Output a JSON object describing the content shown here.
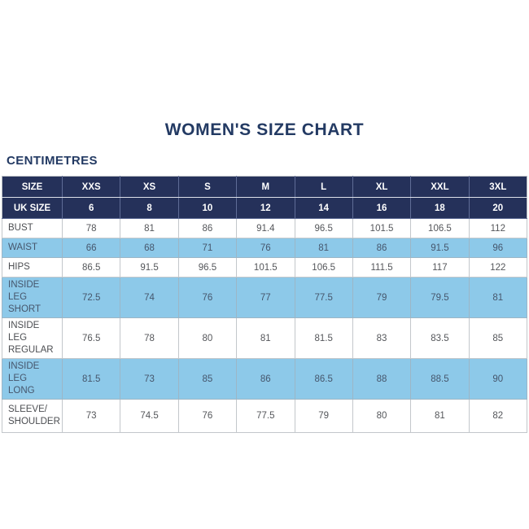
{
  "title": "WOMEN'S SIZE CHART",
  "unit_label": "CENTIMETRES",
  "colors": {
    "header_navy": "#25315A",
    "row_light_blue": "#8DC9E9",
    "title_navy": "#233A63",
    "body_text_gray": "#54565A",
    "grid_border": "#C3C7CB",
    "header_text": "#FFFFFF"
  },
  "chart_data": {
    "type": "table",
    "title": "WOMEN'S SIZE CHART",
    "unit_label": "CENTIMETRES",
    "columns": [
      "SIZE",
      "XXS",
      "XS",
      "S",
      "M",
      "L",
      "XL",
      "XXL",
      "3XL"
    ],
    "uk_size_row": {
      "label": "UK SIZE",
      "values": [
        "6",
        "8",
        "10",
        "12",
        "14",
        "16",
        "18",
        "20"
      ]
    },
    "rows": [
      {
        "label": "BUST",
        "values": [
          "78",
          "81",
          "86",
          "91.4",
          "96.5",
          "101.5",
          "106.5",
          "112"
        ]
      },
      {
        "label": "WAIST",
        "values": [
          "66",
          "68",
          "71",
          "76",
          "81",
          "86",
          "91.5",
          "96"
        ]
      },
      {
        "label": "HIPS",
        "values": [
          "86.5",
          "91.5",
          "96.5",
          "101.5",
          "106.5",
          "111.5",
          "117",
          "122"
        ]
      },
      {
        "label": "INSIDE LEG\nSHORT",
        "values": [
          "72.5",
          "74",
          "76",
          "77",
          "77.5",
          "79",
          "79.5",
          "81"
        ]
      },
      {
        "label": "INSIDE LEG\nREGULAR",
        "values": [
          "76.5",
          "78",
          "80",
          "81",
          "81.5",
          "83",
          "83.5",
          "85"
        ]
      },
      {
        "label": "INSIDE LEG\nLONG",
        "values": [
          "81.5",
          "73",
          "85",
          "86",
          "86.5",
          "88",
          "88.5",
          "90"
        ]
      },
      {
        "label": "SLEEVE/\nSHOULDER",
        "values": [
          "73",
          "74.5",
          "76",
          "77.5",
          "79",
          "80",
          "81",
          "82"
        ]
      }
    ],
    "layout": {
      "striped_rows": "alternating white and light blue starting white",
      "header_rows": 2,
      "first_column_align": "left",
      "value_align": "center"
    }
  }
}
